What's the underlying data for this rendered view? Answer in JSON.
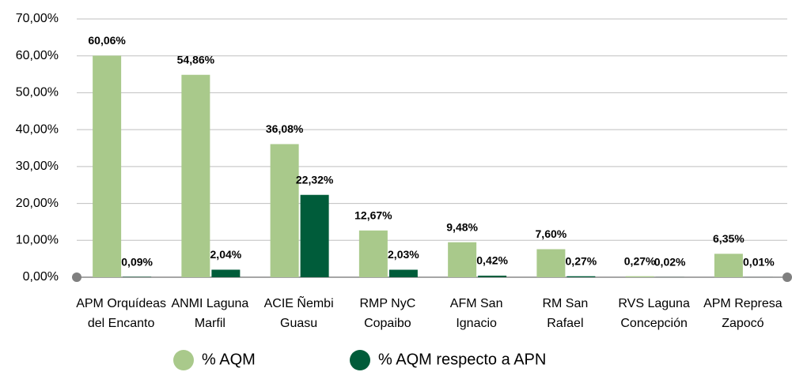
{
  "chart_data": {
    "type": "bar",
    "categories": [
      [
        "APM Orquídeas",
        "del Encanto"
      ],
      [
        "ANMI Laguna",
        "Marfil"
      ],
      [
        "ACIE Ñembi",
        "Guasu"
      ],
      [
        "RMP NyC",
        "Copaibo"
      ],
      [
        "AFM San",
        "Ignacio"
      ],
      [
        "RM San",
        "Rafael"
      ],
      [
        "RVS Laguna",
        "Concepción"
      ],
      [
        "APM Represa",
        "Zapocó"
      ]
    ],
    "series": [
      {
        "name": "% AQM",
        "color": "#a9c98b",
        "values": [
          60.06,
          54.86,
          36.08,
          12.67,
          9.48,
          7.6,
          0.27,
          6.35
        ],
        "value_labels": [
          "60,06%",
          "54,86%",
          "36,08%",
          "12,67%",
          "9,48%",
          "7,60%",
          "0,27%",
          "6,35%"
        ]
      },
      {
        "name": "% AQM respecto a APN",
        "color": "#005c3a",
        "values": [
          0.09,
          2.04,
          22.32,
          2.03,
          0.42,
          0.27,
          0.02,
          0.01
        ],
        "value_labels": [
          "0,09%",
          "2,04%",
          "22,32%",
          "2,03%",
          "0,42%",
          "0,27%",
          "0,02%",
          "0,01%"
        ]
      }
    ],
    "ylim": [
      0,
      70
    ],
    "yticks": [
      {
        "value": 0,
        "label": "0,00%"
      },
      {
        "value": 10,
        "label": "10,00%"
      },
      {
        "value": 20,
        "label": "20,00%"
      },
      {
        "value": 30,
        "label": "30,00%"
      },
      {
        "value": 40,
        "label": "40,00%"
      },
      {
        "value": 50,
        "label": "50,00%"
      },
      {
        "value": 60,
        "label": "60,00%"
      },
      {
        "value": 70,
        "label": "70,00%"
      }
    ],
    "grid": true
  }
}
